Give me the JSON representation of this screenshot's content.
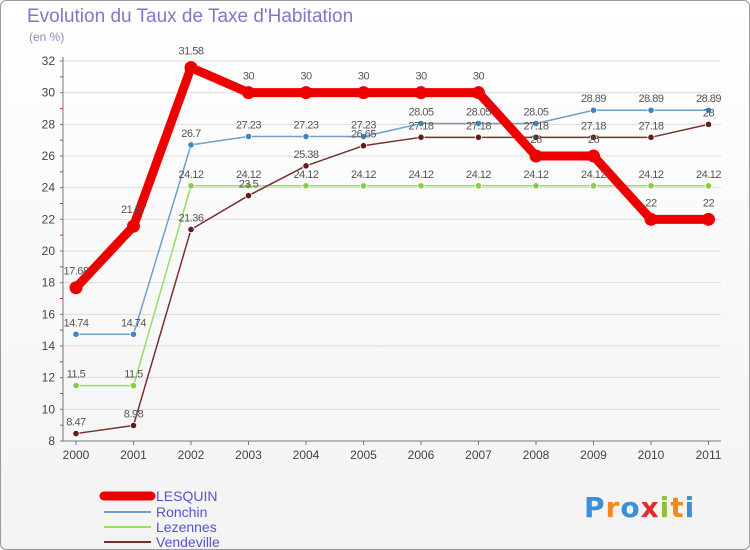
{
  "chart_data": {
    "type": "line",
    "title": "Evolution du Taux de Taxe d'Habitation",
    "subtitle": "(en %)",
    "xlabel": "",
    "ylabel": "(en %)",
    "ylim": [
      8,
      32
    ],
    "yticks": [
      8,
      10,
      12,
      14,
      16,
      18,
      20,
      22,
      24,
      26,
      28,
      30,
      32
    ],
    "categories": [
      "2000",
      "2001",
      "2002",
      "2003",
      "2004",
      "2005",
      "2006",
      "2007",
      "2008",
      "2009",
      "2010",
      "2011"
    ],
    "grid": true,
    "legend_position": "bottom-left",
    "series": [
      {
        "name": "Ronchin",
        "color": "#6f9fcc",
        "marker": "#3d86c6",
        "values": [
          14.74,
          14.74,
          26.7,
          27.23,
          27.23,
          27.23,
          28.05,
          28.05,
          28.05,
          28.89,
          28.89,
          28.89
        ],
        "labels": [
          "14.74",
          "14.74",
          "26.7",
          "27.23",
          "27.23",
          "27.23",
          "28.05",
          "28.05",
          "28.05",
          "28.89",
          "28.89",
          "28.89"
        ]
      },
      {
        "name": "Lezennes",
        "color": "#99dd66",
        "marker": "#88cc44",
        "values": [
          11.5,
          11.5,
          24.12,
          24.12,
          24.12,
          24.12,
          24.12,
          24.12,
          24.12,
          24.12,
          24.12,
          24.12
        ],
        "labels": [
          "11.5",
          "11.5",
          "24.12",
          "24.12",
          "24.12",
          "24.12",
          "24.12",
          "24.12",
          "24.12",
          "24.12",
          "24.12",
          "24.12"
        ]
      },
      {
        "name": "Vendeville",
        "color": "#7a3030",
        "marker": "#661a1a",
        "values": [
          8.47,
          8.98,
          21.36,
          23.5,
          25.38,
          26.65,
          27.18,
          27.18,
          27.18,
          27.18,
          27.18,
          28
        ],
        "labels": [
          "8.47",
          "8.98",
          "21.36",
          "23.5",
          "25.38",
          "26.65",
          "27.18",
          "27.18",
          "27.18",
          "27.18",
          "27.18",
          "28"
        ]
      },
      {
        "name": "LESQUIN",
        "color": "#ee0000",
        "marker": "#ee0000",
        "values": [
          17.68,
          21.57,
          31.58,
          30,
          30,
          30,
          30,
          30,
          26,
          26,
          22,
          22
        ],
        "labels": [
          "17.68",
          "21.57",
          "31.58",
          "30",
          "30",
          "30",
          "30",
          "30",
          "26",
          "26",
          "22",
          "22"
        ]
      }
    ],
    "legend": [
      "LESQUIN",
      "Ronchin",
      "Lezennes",
      "Vendeville"
    ]
  },
  "logo": {
    "text": "Proxiti"
  }
}
